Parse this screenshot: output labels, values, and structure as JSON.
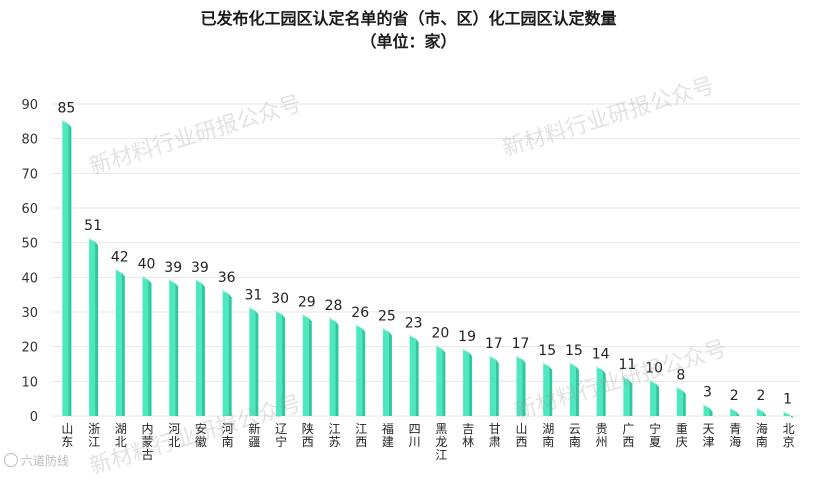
{
  "chart_data": {
    "type": "bar",
    "title": "已发布化工园区认定名单的省（市、区）化工园区认定数量",
    "subtitle": "（单位：家）",
    "categories": [
      "山东",
      "浙江",
      "湖北",
      "内蒙古",
      "河北",
      "安徽",
      "河南",
      "新疆",
      "辽宁",
      "陕西",
      "江苏",
      "江西",
      "福建",
      "四川",
      "黑龙江",
      "吉林",
      "甘肃",
      "山西",
      "湖南",
      "云南",
      "贵州",
      "广西",
      "宁夏",
      "重庆",
      "天津",
      "青海",
      "海南",
      "北京"
    ],
    "values": [
      85,
      51,
      42,
      40,
      39,
      39,
      36,
      31,
      30,
      29,
      28,
      26,
      25,
      23,
      20,
      19,
      17,
      17,
      15,
      15,
      14,
      11,
      10,
      8,
      3,
      2,
      2,
      1
    ],
    "ylim": [
      0,
      90
    ],
    "yticks": [
      0,
      10,
      20,
      30,
      40,
      50,
      60,
      70,
      80,
      90
    ],
    "grid": true,
    "legend": "none",
    "colors": {
      "bar_front": "#4ee8c0",
      "bar_side": "#2fc79c",
      "bar_top": "#8ff3d9",
      "grid": "#e6e6e6"
    }
  },
  "watermark": "新材料行业研报公众号",
  "corner_mark": "六道防线"
}
